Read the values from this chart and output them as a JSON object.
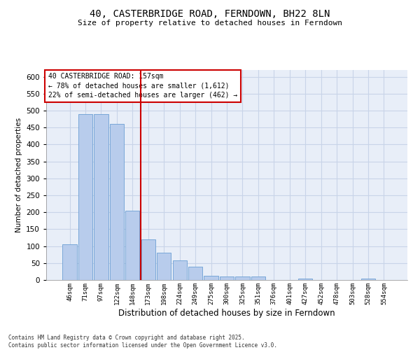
{
  "title_line1": "40, CASTERBRIDGE ROAD, FERNDOWN, BH22 8LN",
  "title_line2": "Size of property relative to detached houses in Ferndown",
  "xlabel": "Distribution of detached houses by size in Ferndown",
  "ylabel": "Number of detached properties",
  "categories": [
    "46sqm",
    "71sqm",
    "97sqm",
    "122sqm",
    "148sqm",
    "173sqm",
    "198sqm",
    "224sqm",
    "249sqm",
    "275sqm",
    "300sqm",
    "325sqm",
    "351sqm",
    "376sqm",
    "401sqm",
    "427sqm",
    "452sqm",
    "478sqm",
    "503sqm",
    "528sqm",
    "554sqm"
  ],
  "values": [
    105,
    490,
    490,
    460,
    205,
    120,
    80,
    57,
    40,
    13,
    10,
    10,
    10,
    0,
    0,
    5,
    0,
    0,
    0,
    5,
    0
  ],
  "bar_color": "#b8ccec",
  "bar_edge_color": "#6b9fd4",
  "grid_color": "#c8d4e8",
  "background_color": "#e8eef8",
  "vline_color": "#cc0000",
  "annotation_title": "40 CASTERBRIDGE ROAD: 157sqm",
  "annotation_line1": "← 78% of detached houses are smaller (1,612)",
  "annotation_line2": "22% of semi-detached houses are larger (462) →",
  "annotation_box_color": "#cc0000",
  "ylim": [
    0,
    620
  ],
  "yticks": [
    0,
    50,
    100,
    150,
    200,
    250,
    300,
    350,
    400,
    450,
    500,
    550,
    600
  ],
  "footnote_line1": "Contains HM Land Registry data © Crown copyright and database right 2025.",
  "footnote_line2": "Contains public sector information licensed under the Open Government Licence v3.0."
}
